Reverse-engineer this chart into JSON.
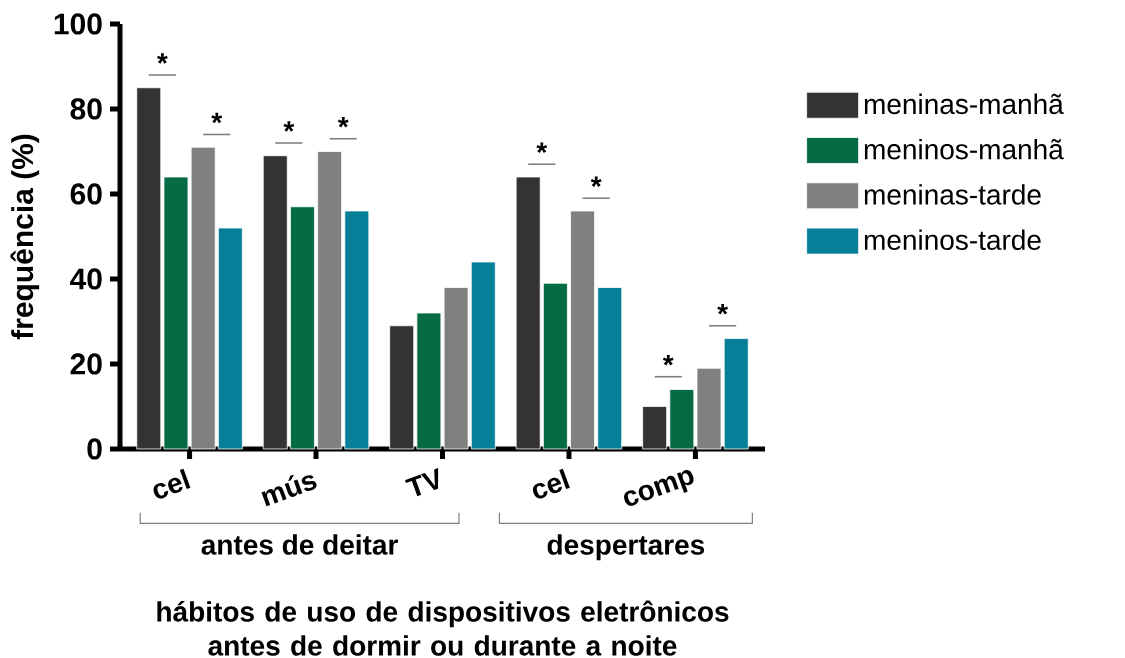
{
  "chart_data": {
    "type": "bar",
    "categories": [
      "cel",
      "mús",
      "TV",
      "cel",
      "comp"
    ],
    "series": [
      {
        "name": "meninas-manhã",
        "color": "#333333",
        "values": [
          85,
          69,
          29,
          64,
          10
        ]
      },
      {
        "name": "meninos-manhã",
        "color": "#066a43",
        "values": [
          64,
          57,
          32,
          39,
          14
        ]
      },
      {
        "name": "meninas-tarde",
        "color": "#808080",
        "values": [
          71,
          70,
          38,
          56,
          19
        ]
      },
      {
        "name": "meninos-tarde",
        "color": "#077f98",
        "values": [
          52,
          56,
          44,
          38,
          26
        ]
      }
    ],
    "ylabel": "frequência (%)",
    "xlabel": "hábitos de uso de dispositivos eletrônicos antes de dormir ou durante a noite",
    "ylim": [
      0,
      100
    ],
    "yticks": [
      0,
      20,
      40,
      60,
      80,
      100
    ],
    "legend": "top right",
    "annotations": [
      "*",
      "*",
      "*",
      "*",
      "*",
      "*",
      "*",
      "*",
      "antes de deitar",
      "despertares"
    ]
  }
}
